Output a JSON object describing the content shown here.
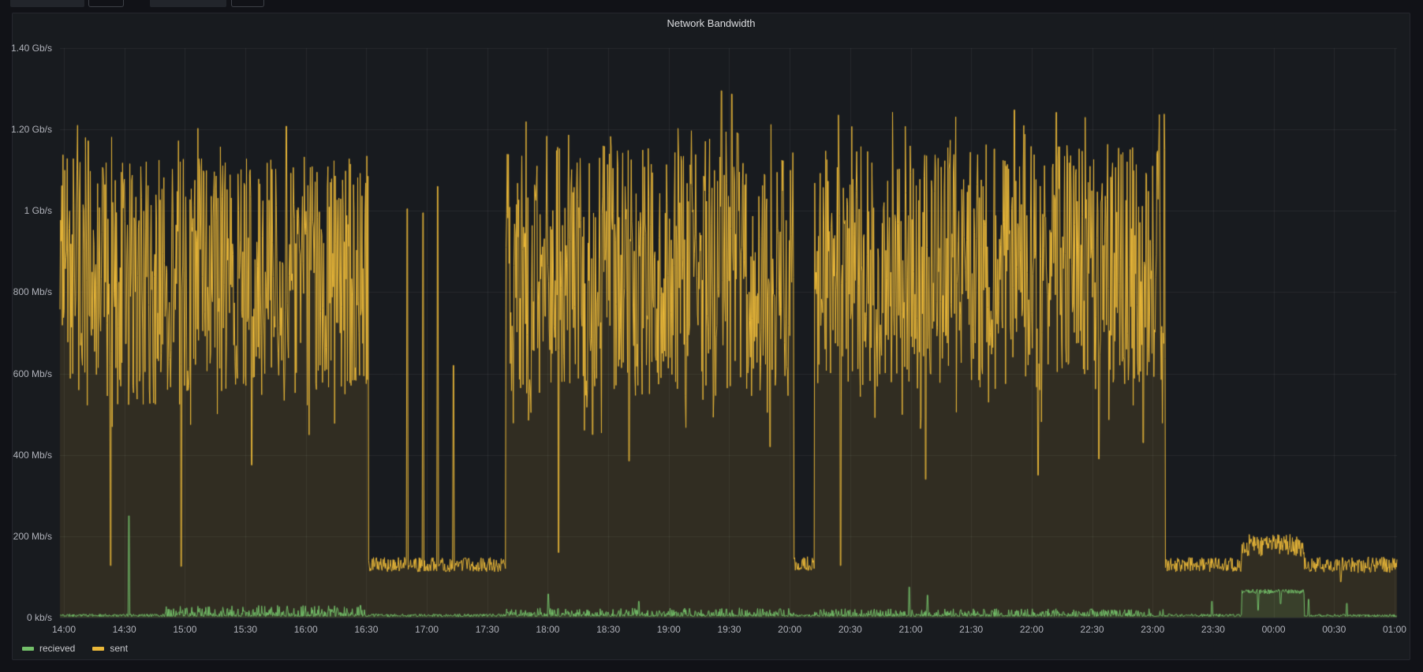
{
  "panel": {
    "title": "Network Bandwidth"
  },
  "top_bar": {
    "widgets": [
      {
        "type": "filled"
      },
      {
        "type": "outlined"
      },
      {
        "type": "filled"
      },
      {
        "type": "outlined"
      }
    ]
  },
  "chart_data": {
    "type": "area",
    "title": "Network Bandwidth",
    "grid": true,
    "legend_position": "bottom-left",
    "seed": 11,
    "x_axis": {
      "data_start": "13:58",
      "data_end": "01:01",
      "tick_interval_minutes": 30,
      "tick_labels": [
        "14:00",
        "14:30",
        "15:00",
        "15:30",
        "16:00",
        "16:30",
        "17:00",
        "17:30",
        "18:00",
        "18:30",
        "19:00",
        "19:30",
        "20:00",
        "20:30",
        "21:00",
        "21:30",
        "22:00",
        "22:30",
        "23:00",
        "23:30",
        "00:00",
        "00:30",
        "01:00"
      ]
    },
    "y_axis": {
      "unit": "bits/sec",
      "max_mbps": 1400,
      "tick_values_mbps": [
        0,
        200,
        400,
        600,
        800,
        1000,
        1200,
        1400
      ],
      "tick_labels": [
        "0 kb/s",
        "200 Mb/s",
        "400 Mb/s",
        "600 Mb/s",
        "800 Mb/s",
        "1 Gb/s",
        "1.20 Gb/s",
        "1.40 Gb/s"
      ]
    },
    "series": [
      {
        "name": "recieved",
        "color": "#73BF69",
        "fill_opacity": 0.13,
        "segments": [
          {
            "from": "13:58",
            "to": "14:50",
            "mode": "flat",
            "lo": 2,
            "hi": 9
          },
          {
            "from": "14:50",
            "to": "16:31",
            "mode": "spiky",
            "lo": 3,
            "hi": 30
          },
          {
            "from": "16:31",
            "to": "17:39",
            "mode": "flat",
            "lo": 2,
            "hi": 9
          },
          {
            "from": "17:39",
            "to": "20:02",
            "mode": "spiky",
            "lo": 3,
            "hi": 24
          },
          {
            "from": "20:02",
            "to": "20:12",
            "mode": "flat",
            "lo": 2,
            "hi": 8
          },
          {
            "from": "20:12",
            "to": "23:06",
            "mode": "spiky",
            "lo": 3,
            "hi": 22
          },
          {
            "from": "23:06",
            "to": "23:44",
            "mode": "flat",
            "lo": 2,
            "hi": 9
          },
          {
            "from": "23:44",
            "to": "00:15",
            "mode": "flat",
            "lo": 58,
            "hi": 70
          },
          {
            "from": "00:15",
            "to": "01:01",
            "mode": "flat",
            "lo": 2,
            "hi": 8
          }
        ],
        "events": [
          {
            "at": "14:32",
            "value": 250
          },
          {
            "at": "16:27",
            "value": 30
          },
          {
            "at": "18:00",
            "value": 58
          },
          {
            "at": "18:45",
            "value": 40
          },
          {
            "at": "20:59",
            "value": 75
          },
          {
            "at": "21:08",
            "value": 55
          },
          {
            "at": "23:29",
            "value": 40
          },
          {
            "at": "23:52",
            "value": 18
          },
          {
            "at": "00:03",
            "value": 34
          },
          {
            "at": "00:17",
            "value": 45
          },
          {
            "at": "00:36",
            "value": 35
          }
        ]
      },
      {
        "name": "sent",
        "color": "#EAB839",
        "fill_opacity": 0.12,
        "segments": [
          {
            "from": "13:58",
            "to": "16:31",
            "mode": "dense",
            "lo": 520,
            "hi": 1130,
            "peak_hi": 1215,
            "peak_p": 0.02,
            "dip_lo": 430,
            "dip_p": 0.02
          },
          {
            "from": "16:31",
            "to": "17:39",
            "mode": "flat",
            "lo": 112,
            "hi": 148
          },
          {
            "from": "17:39",
            "to": "20:02",
            "mode": "dense",
            "lo": 540,
            "hi": 1160,
            "peak_hi": 1240,
            "peak_p": 0.025,
            "dip_lo": 440,
            "dip_p": 0.02
          },
          {
            "from": "20:02",
            "to": "20:12",
            "mode": "flat",
            "lo": 115,
            "hi": 150
          },
          {
            "from": "20:12",
            "to": "23:06",
            "mode": "dense",
            "lo": 560,
            "hi": 1160,
            "peak_hi": 1250,
            "peak_p": 0.02,
            "dip_lo": 450,
            "dip_p": 0.02
          },
          {
            "from": "23:06",
            "to": "23:44",
            "mode": "flat",
            "lo": 112,
            "hi": 148
          },
          {
            "from": "23:44",
            "to": "00:15",
            "mode": "flat",
            "lo": 150,
            "hi": 205
          },
          {
            "from": "00:15",
            "to": "01:01",
            "mode": "flat",
            "lo": 110,
            "hi": 150
          }
        ],
        "events": [
          {
            "at": "14:12",
            "value": 1172
          },
          {
            "at": "14:23",
            "value": 128
          },
          {
            "at": "14:58",
            "value": 126
          },
          {
            "at": "15:33",
            "value": 375
          },
          {
            "at": "15:50",
            "value": 1208
          },
          {
            "at": "16:50",
            "value": 1005
          },
          {
            "at": "16:58",
            "value": 995
          },
          {
            "at": "17:05",
            "value": 1060
          },
          {
            "at": "17:13",
            "value": 620
          },
          {
            "at": "18:05",
            "value": 160
          },
          {
            "at": "18:22",
            "value": 450
          },
          {
            "at": "18:40",
            "value": 385
          },
          {
            "at": "19:26",
            "value": 1295
          },
          {
            "at": "19:31",
            "value": 1287
          },
          {
            "at": "19:34",
            "value": 1190
          },
          {
            "at": "19:50",
            "value": 420
          },
          {
            "at": "20:25",
            "value": 128
          },
          {
            "at": "21:07",
            "value": 340
          },
          {
            "at": "21:51",
            "value": 1248
          },
          {
            "at": "22:03",
            "value": 350
          },
          {
            "at": "22:12",
            "value": 1242
          },
          {
            "at": "22:33",
            "value": 390
          },
          {
            "at": "22:55",
            "value": 430
          },
          {
            "at": "00:33",
            "value": 88
          }
        ]
      }
    ]
  }
}
